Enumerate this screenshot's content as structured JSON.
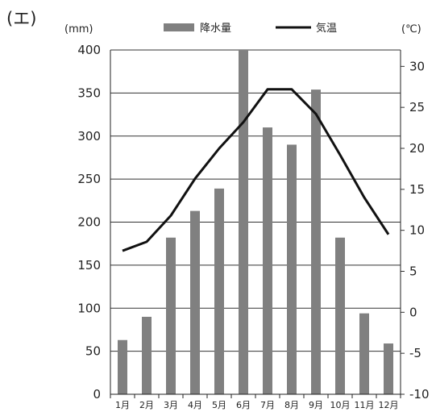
{
  "chart_data": {
    "type": "bar",
    "panel_label": "(エ)",
    "categories": [
      "1月",
      "2月",
      "3月",
      "4月",
      "5月",
      "6月",
      "7月",
      "8月",
      "9月",
      "10月",
      "11月",
      "12月"
    ],
    "series": [
      {
        "name": "降水量",
        "type": "bar",
        "axis": "left",
        "color": "#808080",
        "values": [
          63,
          90,
          182,
          213,
          239,
          400,
          310,
          290,
          354,
          182,
          94,
          59
        ]
      },
      {
        "name": "気温",
        "type": "line",
        "axis": "right",
        "color": "#111111",
        "values": [
          7.5,
          8.6,
          11.8,
          16.3,
          20.0,
          23.2,
          27.2,
          27.2,
          24.2,
          19.2,
          14.0,
          9.5
        ]
      }
    ],
    "left_axis": {
      "unit": "(mm)",
      "ylim": [
        0,
        400
      ],
      "ticks": [
        0,
        50,
        100,
        150,
        200,
        250,
        300,
        350,
        400
      ]
    },
    "right_axis": {
      "unit": "(℃)",
      "ylim": [
        -10,
        32
      ],
      "ticks": [
        -10,
        -5,
        0,
        5,
        10,
        15,
        20,
        25,
        30
      ]
    },
    "grid": true,
    "legend_position": "top"
  }
}
